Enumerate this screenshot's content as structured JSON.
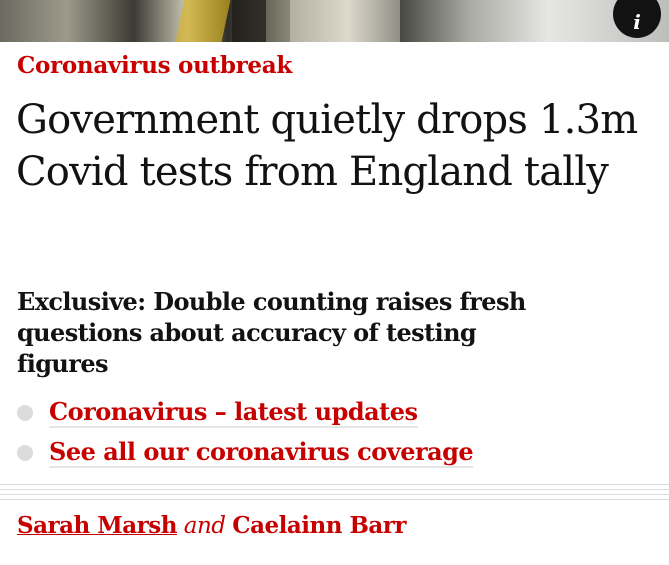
{
  "hero": {
    "info_label": "i"
  },
  "article": {
    "kicker": "Coronavirus outbreak",
    "headline": "Government quietly drops 1.3m Covid tests from England tally",
    "standfirst": "Exclusive: Double counting raises fresh questions about accuracy of testing figures",
    "related_links": [
      {
        "label": "Coronavirus – latest updates"
      },
      {
        "label": "See all our coronavirus coverage"
      }
    ],
    "byline": {
      "author1": "Sarah Marsh",
      "joiner": "and",
      "author2": "Caelainn Barr"
    }
  },
  "colors": {
    "accent": "#c70000",
    "text": "#121212",
    "rule": "#dcdcdc"
  }
}
